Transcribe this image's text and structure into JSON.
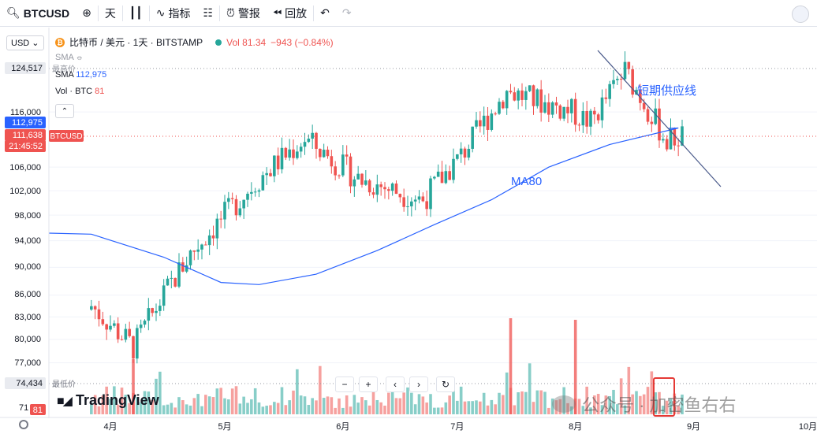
{
  "toolbar": {
    "symbol": "BTCUSD",
    "interval": "天",
    "indicators_label": "指标",
    "alert_label": "警报",
    "replay_label": "回放"
  },
  "legend": {
    "currency": "USD",
    "title": "比特币 / 美元 · 1天 · BITSTAMP",
    "vol_text": "Vol 81.34",
    "vol_change": "−943 (−0.84%)",
    "sma1_label": "SMA",
    "sma2_label": "SMA",
    "sma2_value": "112,975",
    "vol_label": "Vol · BTC",
    "vol_value": "81"
  },
  "price_axis": {
    "ticks": [
      "124,517",
      "116,000",
      "112,975",
      "111,638",
      "21:45:52",
      "106,000",
      "102,000",
      "98,000",
      "94,000",
      "90,000",
      "86,000",
      "83,000",
      "80,000",
      "77,000",
      "74,434",
      "71",
      "81"
    ],
    "high_label": "最高价",
    "low_label": "最低价",
    "symbol_tag": "BTCUSD"
  },
  "time_axis": {
    "months": [
      "4月",
      "5月",
      "6月",
      "7月",
      "8月",
      "9月",
      "10月"
    ]
  },
  "annotations": {
    "ma_label": "MA80",
    "supply_label": "短期供应线"
  },
  "branding": {
    "logo_text": "TradingView",
    "watermark": "公众号 · 加密鱼右右"
  },
  "colors": {
    "up": "#26a69a",
    "down": "#ef5350",
    "ma": "#2962ff",
    "trendline": "#4a5a8a",
    "highlight": "#e53935"
  },
  "chart_data": {
    "type": "candlestick",
    "title": "比特币 / 美元 · 1天 · BITSTAMP",
    "ylim": [
      70000,
      128000
    ],
    "y_scale": "log",
    "x_ticks": [
      "4月",
      "5月",
      "6月",
      "7月",
      "8月",
      "9月",
      "10月"
    ],
    "key_levels": {
      "high": 124517,
      "low": 74434,
      "last": 111638,
      "sma": 112975
    },
    "series_ma80_approx": [
      {
        "date": "2025-03-27",
        "value": 95000
      },
      {
        "date": "2025-04-15",
        "value": 91500
      },
      {
        "date": "2025-04-30",
        "value": 87800
      },
      {
        "date": "2025-05-10",
        "value": 87500
      },
      {
        "date": "2025-05-25",
        "value": 89000
      },
      {
        "date": "2025-06-10",
        "value": 92500
      },
      {
        "date": "2025-06-25",
        "value": 96500
      },
      {
        "date": "2025-07-10",
        "value": 100500
      },
      {
        "date": "2025-07-25",
        "value": 106000
      },
      {
        "date": "2025-08-10",
        "value": 110000
      },
      {
        "date": "2025-08-28",
        "value": 113000
      }
    ],
    "close_path_approx": [
      {
        "date": "2025-03-27",
        "value": 84500
      },
      {
        "date": "2025-04-07",
        "value": 79000
      },
      {
        "date": "2025-04-22",
        "value": 92000
      },
      {
        "date": "2025-05-10",
        "value": 104000
      },
      {
        "date": "2025-05-22",
        "value": 111000
      },
      {
        "date": "2025-06-05",
        "value": 104000
      },
      {
        "date": "2025-06-22",
        "value": 100500
      },
      {
        "date": "2025-07-02",
        "value": 108000
      },
      {
        "date": "2025-07-14",
        "value": 120000
      },
      {
        "date": "2025-07-31",
        "value": 116000
      },
      {
        "date": "2025-08-05",
        "value": 114000
      },
      {
        "date": "2025-08-14",
        "value": 124000
      },
      {
        "date": "2025-08-25",
        "value": 110500
      },
      {
        "date": "2025-08-29",
        "value": 111638
      }
    ],
    "annotations": [
      "MA80",
      "短期供应线"
    ]
  }
}
